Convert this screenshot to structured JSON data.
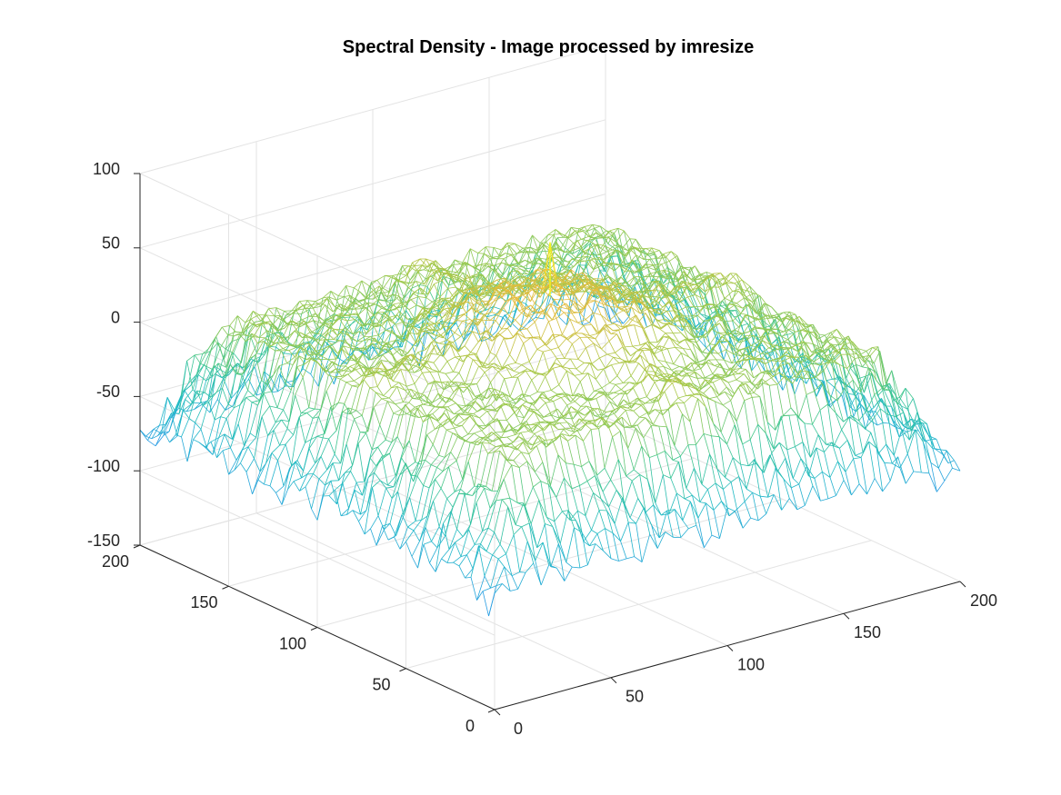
{
  "chart_data": {
    "type": "surface-mesh",
    "title": "Spectral Density - Image processed by imresize",
    "xlabel": "",
    "ylabel": "",
    "zlabel": "",
    "xlim": [
      0,
      200
    ],
    "ylim": [
      0,
      200
    ],
    "zlim": [
      -150,
      100
    ],
    "x_ticks": [
      "0",
      "50",
      "100",
      "150",
      "200"
    ],
    "y_ticks": [
      "0",
      "50",
      "100",
      "150",
      "200"
    ],
    "z_ticks": [
      "-150",
      "-100",
      "-50",
      "0",
      "50",
      "100"
    ],
    "grid": true,
    "box": false,
    "colormap": "parula",
    "colormap_colors": [
      "#3e26a8",
      "#4660f5",
      "#2d99e8",
      "#1fb9c6",
      "#3fc68e",
      "#a2c94a",
      "#efba3b",
      "#f9fb15"
    ],
    "surface": {
      "grid_size": 201,
      "center": [
        100,
        100
      ],
      "center_peak_z": 66,
      "dome_plateau_z": 30,
      "cross_arm_z": 12,
      "edge_min_z": -147,
      "description_values": {
        "center_spike": 66,
        "dome": 30,
        "arms": 12,
        "corner_min": -147
      }
    }
  }
}
